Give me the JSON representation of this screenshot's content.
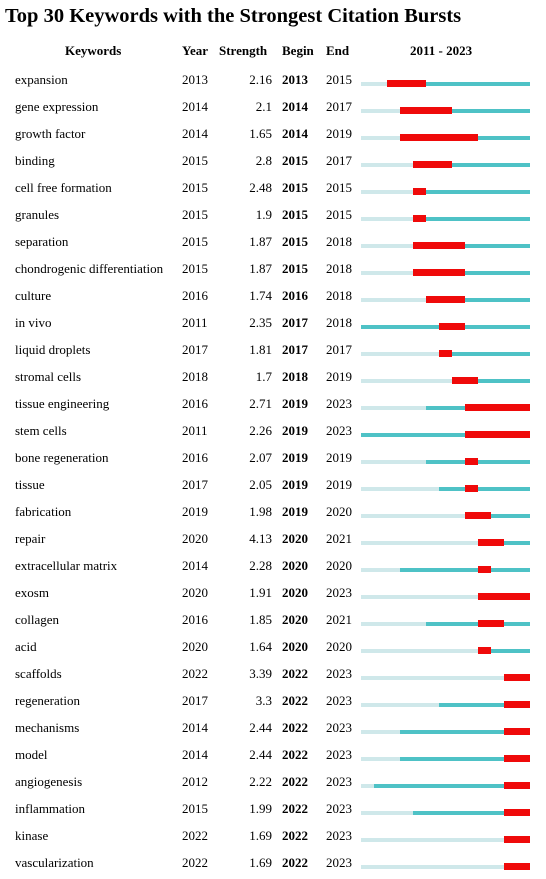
{
  "title": "Top 30 Keywords with the Strongest Citation Bursts",
  "header": {
    "keywords": "Keywords",
    "year": "Year",
    "strength": "Strength",
    "begin": "Begin",
    "end": "End",
    "range": "2011 - 2023"
  },
  "colors": {
    "burst": "#ef0a0a",
    "active": "#4ec2c6",
    "inactive": "#cfe8ea"
  },
  "chart_data": {
    "type": "table",
    "title": "Top 30 Keywords with the Strongest Citation Bursts",
    "range_start": 2011,
    "range_end": 2023,
    "columns": [
      "Keywords",
      "Year",
      "Strength",
      "Begin",
      "End",
      "2011 - 2023"
    ],
    "rows": [
      {
        "keyword": "expansion",
        "year": "2013",
        "strength": "2.16",
        "begin": "2013",
        "end": "2015"
      },
      {
        "keyword": "gene expression",
        "year": "2014",
        "strength": "2.1",
        "begin": "2014",
        "end": "2017"
      },
      {
        "keyword": "growth factor",
        "year": "2014",
        "strength": "1.65",
        "begin": "2014",
        "end": "2019"
      },
      {
        "keyword": "binding",
        "year": "2015",
        "strength": "2.8",
        "begin": "2015",
        "end": "2017"
      },
      {
        "keyword": "cell free formation",
        "year": "2015",
        "strength": "2.48",
        "begin": "2015",
        "end": "2015"
      },
      {
        "keyword": "granules",
        "year": "2015",
        "strength": "1.9",
        "begin": "2015",
        "end": "2015"
      },
      {
        "keyword": "separation",
        "year": "2015",
        "strength": "1.87",
        "begin": "2015",
        "end": "2018"
      },
      {
        "keyword": "chondrogenic differentiation",
        "year": "2015",
        "strength": "1.87",
        "begin": "2015",
        "end": "2018"
      },
      {
        "keyword": "culture",
        "year": "2016",
        "strength": "1.74",
        "begin": "2016",
        "end": "2018"
      },
      {
        "keyword": "in vivo",
        "year": "2011",
        "strength": "2.35",
        "begin": "2017",
        "end": "2018"
      },
      {
        "keyword": "liquid droplets",
        "year": "2017",
        "strength": "1.81",
        "begin": "2017",
        "end": "2017"
      },
      {
        "keyword": "stromal cells",
        "year": "2018",
        "strength": "1.7",
        "begin": "2018",
        "end": "2019"
      },
      {
        "keyword": "tissue engineering",
        "year": "2016",
        "strength": "2.71",
        "begin": "2019",
        "end": "2023"
      },
      {
        "keyword": "stem cells",
        "year": "2011",
        "strength": "2.26",
        "begin": "2019",
        "end": "2023"
      },
      {
        "keyword": "bone regeneration",
        "year": "2016",
        "strength": "2.07",
        "begin": "2019",
        "end": "2019"
      },
      {
        "keyword": "tissue",
        "year": "2017",
        "strength": "2.05",
        "begin": "2019",
        "end": "2019"
      },
      {
        "keyword": "fabrication",
        "year": "2019",
        "strength": "1.98",
        "begin": "2019",
        "end": "2020"
      },
      {
        "keyword": "repair",
        "year": "2020",
        "strength": "4.13",
        "begin": "2020",
        "end": "2021"
      },
      {
        "keyword": "extracellular matrix",
        "year": "2014",
        "strength": "2.28",
        "begin": "2020",
        "end": "2020"
      },
      {
        "keyword": "exosm",
        "year": "2020",
        "strength": "1.91",
        "begin": "2020",
        "end": "2023"
      },
      {
        "keyword": "collagen",
        "year": "2016",
        "strength": "1.85",
        "begin": "2020",
        "end": "2021"
      },
      {
        "keyword": "acid",
        "year": "2020",
        "strength": "1.64",
        "begin": "2020",
        "end": "2020"
      },
      {
        "keyword": "scaffolds",
        "year": "2022",
        "strength": "3.39",
        "begin": "2022",
        "end": "2023"
      },
      {
        "keyword": "regeneration",
        "year": "2017",
        "strength": "3.3",
        "begin": "2022",
        "end": "2023"
      },
      {
        "keyword": "mechanisms",
        "year": "2014",
        "strength": "2.44",
        "begin": "2022",
        "end": "2023"
      },
      {
        "keyword": "model",
        "year": "2014",
        "strength": "2.44",
        "begin": "2022",
        "end": "2023"
      },
      {
        "keyword": "angiogenesis",
        "year": "2012",
        "strength": "2.22",
        "begin": "2022",
        "end": "2023"
      },
      {
        "keyword": "inflammation",
        "year": "2015",
        "strength": "1.99",
        "begin": "2022",
        "end": "2023"
      },
      {
        "keyword": "kinase",
        "year": "2022",
        "strength": "1.69",
        "begin": "2022",
        "end": "2023"
      },
      {
        "keyword": "vascularization",
        "year": "2022",
        "strength": "1.69",
        "begin": "2022",
        "end": "2023"
      }
    ]
  }
}
